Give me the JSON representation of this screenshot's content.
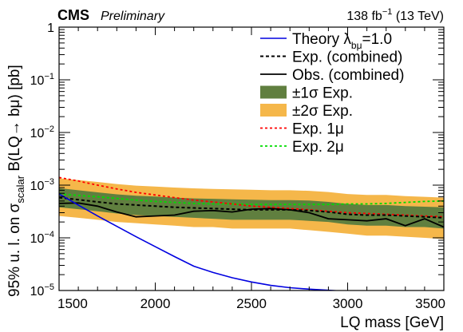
{
  "header": {
    "experiment": "CMS",
    "status": "Preliminary",
    "lumi": "138 fb",
    "lumi_exp": "−1",
    "energy": " (13 TeV)"
  },
  "chart_data": {
    "type": "line",
    "xlabel": "LQ mass [GeV]",
    "ylabel": {
      "part1": "95% u. l. on σ",
      "sub": "scalar",
      "part2": " B(LQ→ bμ) [pb]"
    },
    "xlim": [
      1500,
      3500
    ],
    "ylim": [
      1e-05,
      1
    ],
    "yscale": "log",
    "x_ticks": [
      "1500",
      "2000",
      "2500",
      "3000",
      "3500"
    ],
    "y_ticks": [
      {
        "value": 1,
        "label": "1"
      },
      {
        "value": 0.1,
        "label": "10",
        "exp": "−1"
      },
      {
        "value": 0.01,
        "label": "10",
        "exp": "−2"
      },
      {
        "value": 0.001,
        "label": "10",
        "exp": "−3"
      },
      {
        "value": 0.0001,
        "label": "10",
        "exp": "−4"
      },
      {
        "value": 1e-05,
        "label": "10",
        "exp": "−5"
      }
    ],
    "legend_position": "top-right",
    "legend": [
      {
        "key": "theory",
        "text": "Theory λ",
        "sub": "bμ",
        "suffix": "=1.0"
      },
      {
        "key": "exp",
        "text": "Exp. (combined)"
      },
      {
        "key": "obs",
        "text": "Obs. (combined)"
      },
      {
        "key": "band1",
        "text": "±1σ Exp."
      },
      {
        "key": "band2",
        "text": "±2σ Exp."
      },
      {
        "key": "exp1mu",
        "text": "Exp. 1μ"
      },
      {
        "key": "exp2mu",
        "text": "Exp. 2μ"
      }
    ],
    "colors": {
      "theory": "#0000e0",
      "band1": "#607f3f",
      "band2": "#f5b74a",
      "exp1mu": "#ff0000",
      "exp2mu": "#00dd00"
    },
    "x": [
      1500,
      1600,
      1700,
      1800,
      1900,
      2000,
      2100,
      2200,
      2300,
      2400,
      2500,
      2600,
      2700,
      2800,
      2900,
      3000,
      3100,
      3200,
      3300,
      3400,
      3500
    ],
    "theory": {
      "x": [
        1500,
        1600,
        1700,
        1800,
        1900,
        2000,
        2100,
        2200,
        2300,
        2400,
        2500,
        2600,
        2700,
        2800,
        2900,
        2940
      ],
      "values": [
        0.00068,
        0.00042,
        0.00026,
        0.000165,
        0.000105,
        6.8e-05,
        4.4e-05,
        2.9e-05,
        2.2e-05,
        1.75e-05,
        1.45e-05,
        1.25e-05,
        1.13e-05,
        1.06e-05,
        1.01e-05,
        9.9e-06
      ]
    },
    "series": [
      {
        "key": "exp",
        "values": [
          0.00058,
          0.00053,
          0.00048,
          0.00044,
          0.00042,
          0.0004,
          0.00038,
          0.00037,
          0.00036,
          0.00035,
          0.00034,
          0.00034,
          0.00034,
          0.00033,
          0.00031,
          0.00028,
          0.00027,
          0.00027,
          0.00026,
          0.00025,
          0.00024
        ]
      },
      {
        "key": "obs",
        "values": [
          0.00045,
          0.00046,
          0.0004,
          0.00031,
          0.00025,
          0.00026,
          0.00027,
          0.00032,
          0.00033,
          0.00031,
          0.00035,
          0.00036,
          0.00034,
          0.0003,
          0.00023,
          0.00022,
          0.00021,
          0.00023,
          0.00017,
          0.00023,
          0.00016
        ]
      },
      {
        "key": "exp1mu",
        "values": [
          0.0014,
          0.0012,
          0.001,
          0.00085,
          0.00073,
          0.00065,
          0.00058,
          0.00052,
          0.00048,
          0.00044,
          0.0004,
          0.00038,
          0.00036,
          0.00034,
          0.00032,
          0.0003,
          0.00029,
          0.00028,
          0.00027,
          0.00026,
          0.00025
        ]
      },
      {
        "key": "exp2mu",
        "values": [
          0.00068,
          0.00064,
          0.0006,
          0.00056,
          0.00052,
          0.00049,
          0.00047,
          0.00045,
          0.00044,
          0.00044,
          0.00043,
          0.00043,
          0.00043,
          0.00043,
          0.00043,
          0.00044,
          0.00044,
          0.00045,
          0.00047,
          0.00049,
          0.0005
        ]
      }
    ],
    "band1": {
      "lo": [
        0.00038,
        0.00035,
        0.00032,
        0.00029,
        0.00027,
        0.00026,
        0.00025,
        0.00024,
        0.00023,
        0.00022,
        0.00022,
        0.00022,
        0.00022,
        0.00021,
        0.0002,
        0.00018,
        0.00017,
        0.00017,
        0.00016,
        0.00016,
        0.00015
      ],
      "hi": [
        0.00088,
        0.0008,
        0.00073,
        0.00067,
        0.00063,
        0.00061,
        0.00058,
        0.00056,
        0.00055,
        0.00054,
        0.00053,
        0.00052,
        0.00052,
        0.00051,
        0.00048,
        0.00044,
        0.00042,
        0.00042,
        0.0004,
        0.00039,
        0.00038
      ]
    },
    "band2": {
      "lo": [
        0.00026,
        0.00024,
        0.00022,
        0.0002,
        0.00019,
        0.00018,
        0.00017,
        0.00016,
        0.00016,
        0.00015,
        0.00015,
        0.00015,
        0.00015,
        0.00014,
        0.00013,
        0.00012,
        0.00011,
        0.00011,
        0.000105,
        0.0001,
        9.5e-05
      ],
      "hi": [
        0.00135,
        0.00125,
        0.00115,
        0.00105,
        0.00098,
        0.00094,
        0.0009,
        0.00087,
        0.00085,
        0.00083,
        0.00082,
        0.0008,
        0.0008,
        0.00078,
        0.00074,
        0.00068,
        0.00065,
        0.00065,
        0.00062,
        0.0006,
        0.00058
      ]
    }
  }
}
